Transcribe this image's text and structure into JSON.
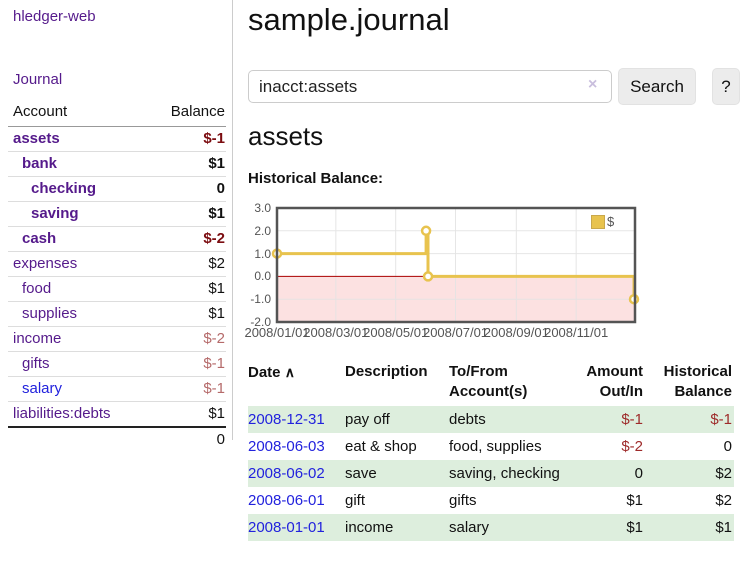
{
  "app": {
    "brand": "hledger-web",
    "nav_journal": "Journal"
  },
  "sidebar": {
    "header": {
      "account": "Account",
      "balance": "Balance"
    },
    "accounts": [
      {
        "name": "assets",
        "level": 0,
        "in_focus": true,
        "balance": "$-1",
        "neg": "strong"
      },
      {
        "name": "bank",
        "level": 1,
        "in_focus": true,
        "balance": "$1"
      },
      {
        "name": "checking",
        "level": 2,
        "in_focus": true,
        "balance": "0"
      },
      {
        "name": "saving",
        "level": 2,
        "in_focus": true,
        "balance": "$1"
      },
      {
        "name": "cash",
        "level": 1,
        "in_focus": true,
        "balance": "$-2",
        "neg": "strong"
      },
      {
        "name": "expenses",
        "level": 0,
        "balance": "$2"
      },
      {
        "name": "food",
        "level": 1,
        "balance": "$1"
      },
      {
        "name": "supplies",
        "level": 1,
        "balance": "$1"
      },
      {
        "name": "income",
        "level": 0,
        "balance": "$-2",
        "neg": "soft"
      },
      {
        "name": "gifts",
        "level": 1,
        "balance": "$-1",
        "neg": "soft"
      },
      {
        "name": "salary",
        "level": 1,
        "balance": "$-1",
        "neg": "soft",
        "link_blue": true
      },
      {
        "name": "liabilities:debts",
        "level": 0,
        "balance": "$1"
      }
    ],
    "total": "0"
  },
  "header": {
    "title": "sample.journal"
  },
  "search": {
    "value": "inacct:assets",
    "clear_icon": "×",
    "button_label": "Search",
    "help_label": "?"
  },
  "account_page": {
    "title": "assets",
    "chart_label": "Historical Balance:"
  },
  "chart_data": {
    "type": "line",
    "title": "Historical Balance:",
    "series": [
      {
        "name": "$",
        "step": true,
        "points": [
          {
            "date": "2008-01-01",
            "value": 1
          },
          {
            "date": "2008-06-01",
            "value": 2
          },
          {
            "date": "2008-06-03",
            "value": 0
          },
          {
            "date": "2008-12-31",
            "value": -1
          }
        ]
      }
    ],
    "x_range": [
      "2008-01-01",
      "2008-12-31"
    ],
    "ylim": [
      -2,
      3
    ],
    "y_ticks": [
      "3.0",
      "2.0",
      "1.0",
      "0.0",
      "-1.0",
      "-2.0"
    ],
    "x_ticks": [
      "2008/01/01",
      "2008/03/01",
      "2008/05/01",
      "2008/07/01",
      "2008/09/01",
      "2008/11/01"
    ],
    "grid": true,
    "legend_position": "top-right",
    "colors": {
      "line": "#e8c34e",
      "marker_fill": "#ffffff",
      "negative_fill": "#fce1e1",
      "zero_line": "#aa0000",
      "border": "#545454",
      "grid": "#e3e3e3"
    }
  },
  "register": {
    "columns": [
      "Date",
      "Description",
      "To/From Account(s)",
      "Amount Out/In",
      "Historical Balance"
    ],
    "sort_indicator": "∧",
    "rows": [
      {
        "date": "2008-12-31",
        "description": "pay off",
        "accounts": "debts",
        "amount": "$-1",
        "amount_neg": true,
        "balance": "$-1",
        "balance_neg": true,
        "striped": true
      },
      {
        "date": "2008-06-03",
        "description": "eat & shop",
        "accounts": "food, supplies",
        "amount": "$-2",
        "amount_neg": true,
        "balance": "0",
        "balance_neg": false,
        "striped": false
      },
      {
        "date": "2008-06-02",
        "description": "save",
        "accounts": "saving, checking",
        "amount": "0",
        "amount_neg": false,
        "balance": "$2",
        "balance_neg": false,
        "striped": true
      },
      {
        "date": "2008-06-01",
        "description": "gift",
        "accounts": "gifts",
        "amount": "$1",
        "amount_neg": false,
        "balance": "$2",
        "balance_neg": false,
        "striped": false
      },
      {
        "date": "2008-01-01",
        "description": "income",
        "accounts": "salary",
        "amount": "$1",
        "amount_neg": false,
        "balance": "$1",
        "balance_neg": false,
        "striped": true
      }
    ]
  }
}
